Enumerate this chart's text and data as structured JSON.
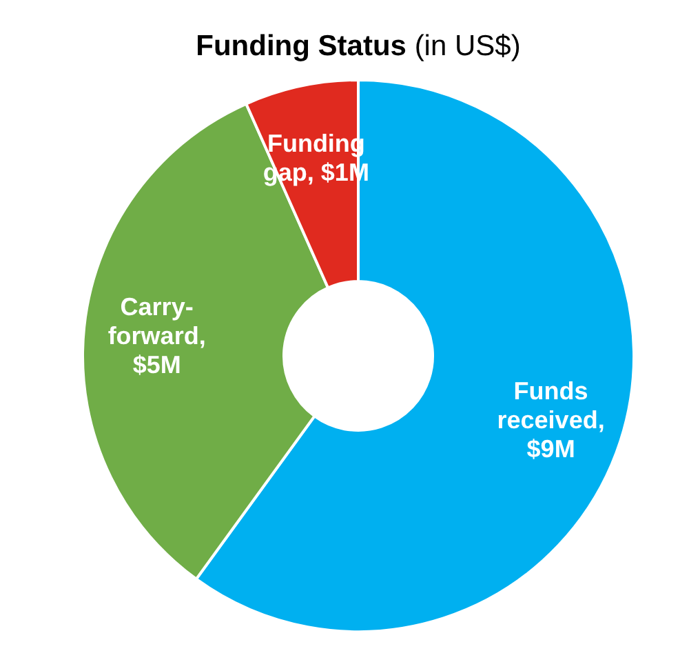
{
  "chart_data": {
    "type": "donut",
    "title": "Funding Status",
    "subtitle": "(in US$)",
    "categories": [
      "Funds received, $9M",
      "Carry-forward, $5M",
      "Funding gap, $1M"
    ],
    "values": [
      9,
      5,
      1
    ],
    "colors": [
      "#00b0f0",
      "#70ad47",
      "#e02a1f"
    ]
  }
}
